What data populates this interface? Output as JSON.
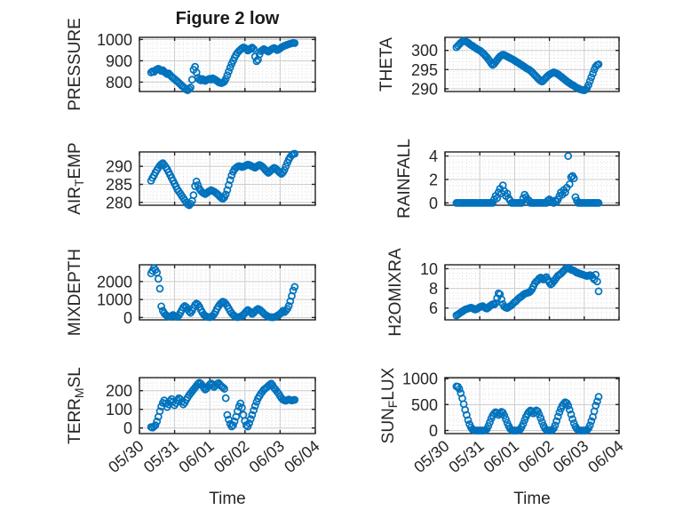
{
  "figure": {
    "title": "Figure 2 low",
    "xlabel": "Time"
  },
  "colors": {
    "marker": "#0072BD",
    "axis_box": "#222222",
    "text": "#262626",
    "major_grid": "#cccccc",
    "minor_grid": "#d9d9d9"
  },
  "chart_data": {
    "type": "scatter",
    "marker": "open-circle",
    "grid": "major-solid-minor-dotted",
    "xlabel": "Time",
    "xlim": [
      0,
      5
    ],
    "xticks": [
      0,
      1,
      2,
      3,
      4,
      5
    ],
    "xtick_labels": [
      "05/30",
      "05/31",
      "06/01",
      "06/02",
      "06/03",
      "06/04"
    ],
    "minor_x_step": 0.125,
    "x_days_since_0530": [
      0.33,
      0.372,
      0.413,
      0.455,
      0.497,
      0.538,
      0.58,
      0.622,
      0.663,
      0.705,
      0.747,
      0.788,
      0.83,
      0.872,
      0.913,
      0.955,
      0.997,
      1.038,
      1.08,
      1.122,
      1.163,
      1.205,
      1.247,
      1.288,
      1.33,
      1.372,
      1.413,
      1.455,
      1.497,
      1.538,
      1.58,
      1.622,
      1.663,
      1.705,
      1.747,
      1.788,
      1.83,
      1.872,
      1.913,
      1.955,
      1.997,
      2.038,
      2.08,
      2.122,
      2.163,
      2.205,
      2.247,
      2.288,
      2.33,
      2.372,
      2.413,
      2.455,
      2.497,
      2.538,
      2.58,
      2.622,
      2.663,
      2.705,
      2.747,
      2.788,
      2.83,
      2.872,
      2.913,
      2.955,
      2.997,
      3.038,
      3.08,
      3.122,
      3.163,
      3.205,
      3.247,
      3.288,
      3.33,
      3.372,
      3.413,
      3.455,
      3.497,
      3.538,
      3.58,
      3.622,
      3.663,
      3.705,
      3.747,
      3.788,
      3.83,
      3.872,
      3.913,
      3.955,
      3.997,
      4.038,
      4.08,
      4.122,
      4.163,
      4.205,
      4.247,
      4.288,
      4.33,
      4.372,
      4.413
    ],
    "plots": [
      {
        "id": "pressure",
        "ylabel_parts": [
          {
            "text": "PRESSURE",
            "sub": false
          }
        ],
        "ylim": [
          756,
          1010
        ],
        "yticks": [
          800,
          900,
          1000
        ],
        "ytick_labels": [
          "800",
          "900",
          "1000"
        ],
        "minor_y_step": 20,
        "values": [
          845,
          851,
          848,
          855,
          860,
          863,
          858,
          852,
          856,
          849,
          843,
          838,
          841,
          833,
          826,
          820,
          815,
          808,
          803,
          797,
          790,
          783,
          778,
          772,
          765,
          762,
          768,
          775,
          812,
          858,
          872,
          845,
          820,
          812,
          808,
          815,
          810,
          806,
          811,
          813,
          816,
          812,
          818,
          815,
          810,
          806,
          800,
          797,
          795,
          798,
          803,
          815,
          832,
          850,
          868,
          885,
          900,
          915,
          928,
          938,
          946,
          952,
          958,
          963,
          960,
          955,
          948,
          952,
          958,
          962,
          956,
          920,
          898,
          905,
          930,
          945,
          950,
          955,
          951,
          947,
          943,
          948,
          953,
          957,
          960,
          955,
          950,
          953,
          958,
          963,
          967,
          970,
          973,
          976,
          978,
          980,
          982,
          984,
          983
        ]
      },
      {
        "id": "theta",
        "ylabel_parts": [
          {
            "text": "THETA",
            "sub": false
          }
        ],
        "ylim": [
          289.3,
          303.4
        ],
        "yticks": [
          290,
          295,
          300
        ],
        "ytick_labels": [
          "290",
          "295",
          "300"
        ],
        "minor_y_step": 1,
        "values": [
          300.8,
          301.2,
          301.6,
          302.0,
          302.3,
          302.5,
          302.4,
          302.2,
          302.0,
          301.7,
          301.4,
          301.2,
          300.9,
          300.7,
          300.4,
          300.2,
          300.0,
          299.7,
          299.4,
          299.0,
          298.6,
          298.2,
          297.7,
          297.2,
          296.6,
          296.2,
          296.5,
          297.0,
          297.5,
          298.0,
          298.4,
          298.7,
          298.9,
          298.8,
          298.6,
          298.4,
          298.2,
          298.0,
          297.8,
          297.6,
          297.4,
          297.1,
          296.9,
          296.7,
          296.4,
          296.2,
          295.9,
          295.7,
          295.4,
          295.2,
          295.0,
          294.7,
          294.4,
          294.0,
          293.6,
          293.2,
          292.8,
          292.4,
          292.1,
          291.9,
          292.2,
          292.6,
          293.0,
          293.4,
          293.7,
          293.9,
          294.1,
          294.3,
          294.2,
          294.0,
          293.8,
          293.5,
          293.2,
          292.9,
          292.6,
          292.3,
          292.0,
          291.7,
          291.5,
          291.2,
          291.0,
          290.8,
          290.5,
          290.3,
          290.1,
          289.9,
          289.8,
          289.7,
          289.6,
          289.8,
          290.2,
          291.0,
          292.0,
          293.0,
          294.0,
          295.0,
          295.8,
          296.2,
          296.4
        ]
      },
      {
        "id": "air-temp",
        "ylabel_parts": [
          {
            "text": "AIR",
            "sub": false
          },
          {
            "text": "T",
            "sub": true
          },
          {
            "text": "EMP",
            "sub": false
          }
        ],
        "ylim": [
          279.2,
          294.0
        ],
        "yticks": [
          280,
          285,
          290
        ],
        "ytick_labels": [
          "280",
          "285",
          "290"
        ],
        "minor_y_step": 1,
        "values": [
          286.0,
          286.8,
          287.5,
          288.3,
          289.0,
          289.6,
          290.2,
          290.6,
          290.9,
          290.4,
          289.8,
          289.2,
          288.4,
          287.6,
          286.8,
          286.0,
          285.2,
          284.4,
          283.6,
          283.0,
          282.4,
          281.8,
          281.2,
          280.6,
          280.0,
          279.5,
          279.2,
          279.6,
          280.4,
          282.0,
          284.5,
          285.8,
          284.8,
          283.8,
          283.2,
          282.8,
          282.5,
          282.3,
          282.6,
          282.9,
          283.2,
          283.4,
          283.2,
          283.0,
          282.7,
          282.4,
          282.0,
          281.6,
          281.2,
          281.0,
          281.4,
          282.2,
          283.4,
          284.8,
          286.2,
          287.5,
          288.5,
          289.2,
          289.6,
          289.9,
          290.1,
          290.0,
          289.8,
          289.9,
          290.1,
          290.3,
          290.5,
          290.4,
          290.2,
          290.0,
          289.8,
          289.6,
          289.9,
          290.2,
          290.4,
          290.2,
          289.9,
          289.5,
          289.0,
          288.6,
          288.2,
          288.5,
          288.9,
          289.3,
          289.6,
          289.4,
          289.0,
          288.6,
          288.2,
          287.9,
          288.3,
          289.0,
          290.0,
          291.0,
          291.9,
          292.6,
          293.1,
          293.4,
          293.5
        ]
      },
      {
        "id": "rainfall",
        "ylabel_parts": [
          {
            "text": "RAINFALL",
            "sub": false
          }
        ],
        "ylim": [
          -0.2,
          4.35
        ],
        "yticks": [
          0,
          2,
          4
        ],
        "ytick_labels": [
          "0",
          "2",
          "4"
        ],
        "minor_y_step": 0.5,
        "values": [
          0,
          0,
          0,
          0,
          0,
          0,
          0,
          0,
          0,
          0,
          0,
          0,
          0,
          0,
          0,
          0,
          0,
          0,
          0,
          0,
          0,
          0,
          0,
          0,
          0,
          0,
          0.3,
          0.6,
          0.4,
          0.9,
          1.2,
          0.8,
          1.5,
          1.0,
          0.6,
          0.8,
          0.4,
          0.2,
          0,
          0,
          0,
          0,
          0,
          0,
          0,
          0,
          0.4,
          0.7,
          0.5,
          0.3,
          0.2,
          0,
          0,
          0,
          0,
          0,
          0,
          0,
          0,
          0,
          0,
          0,
          0,
          0.2,
          0.3,
          0.2,
          0.1,
          0,
          0.2,
          0.1,
          0.3,
          0.6,
          0.9,
          0.7,
          1.1,
          0.9,
          1.3,
          4.0,
          1.6,
          2.2,
          2.3,
          2.1,
          0.5,
          0.2,
          0,
          0,
          0,
          0,
          0,
          0,
          0,
          0,
          0,
          0,
          0,
          0,
          0,
          0,
          0
        ]
      },
      {
        "id": "mixdepth",
        "ylabel_parts": [
          {
            "text": "MIXDEPTH",
            "sub": false
          }
        ],
        "ylim": [
          -130,
          2930
        ],
        "yticks": [
          0,
          1000,
          2000
        ],
        "ytick_labels": [
          "0",
          "1000",
          "2000"
        ],
        "minor_y_step": 200,
        "values": [
          2450,
          2600,
          2750,
          2650,
          2500,
          2150,
          1600,
          620,
          380,
          240,
          150,
          90,
          60,
          50,
          80,
          140,
          90,
          60,
          40,
          120,
          260,
          420,
          560,
          640,
          580,
          460,
          340,
          260,
          380,
          550,
          700,
          780,
          720,
          600,
          420,
          280,
          160,
          90,
          50,
          30,
          20,
          40,
          90,
          180,
          320,
          480,
          620,
          740,
          820,
          880,
          840,
          760,
          640,
          500,
          360,
          240,
          150,
          80,
          40,
          20,
          30,
          60,
          100,
          160,
          240,
          340,
          420,
          360,
          280,
          200,
          260,
          350,
          430,
          480,
          440,
          380,
          300,
          220,
          150,
          100,
          60,
          30,
          20,
          15,
          25,
          50,
          90,
          140,
          200,
          280,
          380,
          300,
          380,
          480,
          650,
          900,
          1200,
          1500,
          1700
        ]
      },
      {
        "id": "h2omixra",
        "ylabel_parts": [
          {
            "text": "H2OMIXRA",
            "sub": false
          }
        ],
        "ylim": [
          4.8,
          10.4
        ],
        "yticks": [
          6,
          8,
          10
        ],
        "ytick_labels": [
          "6",
          "8",
          "10"
        ],
        "minor_y_step": 0.5,
        "values": [
          5.25,
          5.35,
          5.45,
          5.55,
          5.65,
          5.75,
          5.85,
          5.9,
          5.95,
          6.0,
          6.05,
          6.0,
          5.9,
          5.85,
          5.9,
          6.0,
          6.1,
          6.15,
          6.2,
          6.1,
          6.0,
          5.95,
          6.05,
          6.2,
          6.3,
          6.4,
          6.35,
          6.5,
          7.0,
          7.5,
          7.4,
          6.9,
          6.4,
          6.15,
          6.05,
          6.0,
          6.1,
          6.2,
          6.3,
          6.45,
          6.6,
          6.7,
          6.85,
          7.0,
          7.1,
          7.2,
          7.35,
          7.45,
          7.5,
          7.55,
          7.6,
          7.7,
          7.9,
          8.2,
          8.5,
          8.7,
          8.8,
          9.0,
          9.1,
          9.0,
          8.9,
          9.05,
          9.15,
          8.9,
          8.6,
          8.4,
          8.5,
          8.7,
          8.9,
          9.1,
          9.3,
          9.4,
          9.5,
          9.65,
          9.8,
          9.95,
          10.05,
          10.1,
          10.0,
          9.9,
          9.85,
          9.8,
          9.7,
          9.6,
          9.55,
          9.5,
          9.45,
          9.4,
          9.35,
          9.3,
          9.25,
          9.3,
          9.35,
          9.3,
          9.1,
          8.9,
          9.4,
          8.7,
          7.7
        ]
      },
      {
        "id": "terr-msl",
        "ylabel_parts": [
          {
            "text": "TERR",
            "sub": false
          },
          {
            "text": "M",
            "sub": true
          },
          {
            "text": "SL",
            "sub": false
          }
        ],
        "ylim": [
          -30,
          270
        ],
        "yticks": [
          0,
          100,
          200
        ],
        "ytick_labels": [
          "0",
          "100",
          "200"
        ],
        "minor_y_step": 20,
        "values": [
          5,
          2,
          8,
          15,
          35,
          60,
          90,
          115,
          135,
          148,
          132,
          112,
          126,
          144,
          155,
          141,
          122,
          134,
          149,
          160,
          154,
          141,
          126,
          136,
          151,
          164,
          176,
          186,
          196,
          206,
          216,
          226,
          236,
          243,
          237,
          227,
          216,
          206,
          213,
          223,
          233,
          239,
          231,
          220,
          227,
          236,
          241,
          232,
          224,
          218,
          210,
          160,
          70,
          45,
          22,
          8,
          15,
          35,
          60,
          90,
          115,
          132,
          108,
          70,
          38,
          15,
          8,
          25,
          48,
          70,
          95,
          118,
          140,
          158,
          172,
          185,
          195,
          205,
          212,
          218,
          225,
          232,
          238,
          228,
          215,
          205,
          195,
          185,
          172,
          160,
          152,
          148,
          146,
          150,
          153,
          150,
          147,
          149,
          151
        ]
      },
      {
        "id": "sun-flux",
        "ylabel_parts": [
          {
            "text": "SUN",
            "sub": false
          },
          {
            "text": "F",
            "sub": true
          },
          {
            "text": "LUX",
            "sub": false
          }
        ],
        "ylim": [
          -60,
          1020
        ],
        "yticks": [
          0,
          500,
          1000
        ],
        "ytick_labels": [
          "0",
          "500",
          "1000"
        ],
        "minor_y_step": 100,
        "values": [
          850,
          845,
          800,
          720,
          620,
          510,
          400,
          300,
          200,
          120,
          60,
          20,
          5,
          0,
          0,
          0,
          0,
          0,
          0,
          0,
          5,
          30,
          90,
          160,
          230,
          290,
          330,
          355,
          340,
          300,
          330,
          360,
          345,
          290,
          220,
          150,
          85,
          35,
          10,
          0,
          0,
          0,
          0,
          5,
          25,
          70,
          130,
          200,
          265,
          320,
          360,
          385,
          370,
          330,
          355,
          390,
          370,
          310,
          240,
          165,
          95,
          40,
          10,
          0,
          0,
          0,
          10,
          40,
          100,
          180,
          270,
          350,
          420,
          480,
          520,
          545,
          530,
          480,
          400,
          310,
          220,
          140,
          75,
          30,
          10,
          0,
          0,
          0,
          0,
          0,
          10,
          40,
          100,
          180,
          260,
          370,
          480,
          560,
          650
        ]
      }
    ]
  }
}
